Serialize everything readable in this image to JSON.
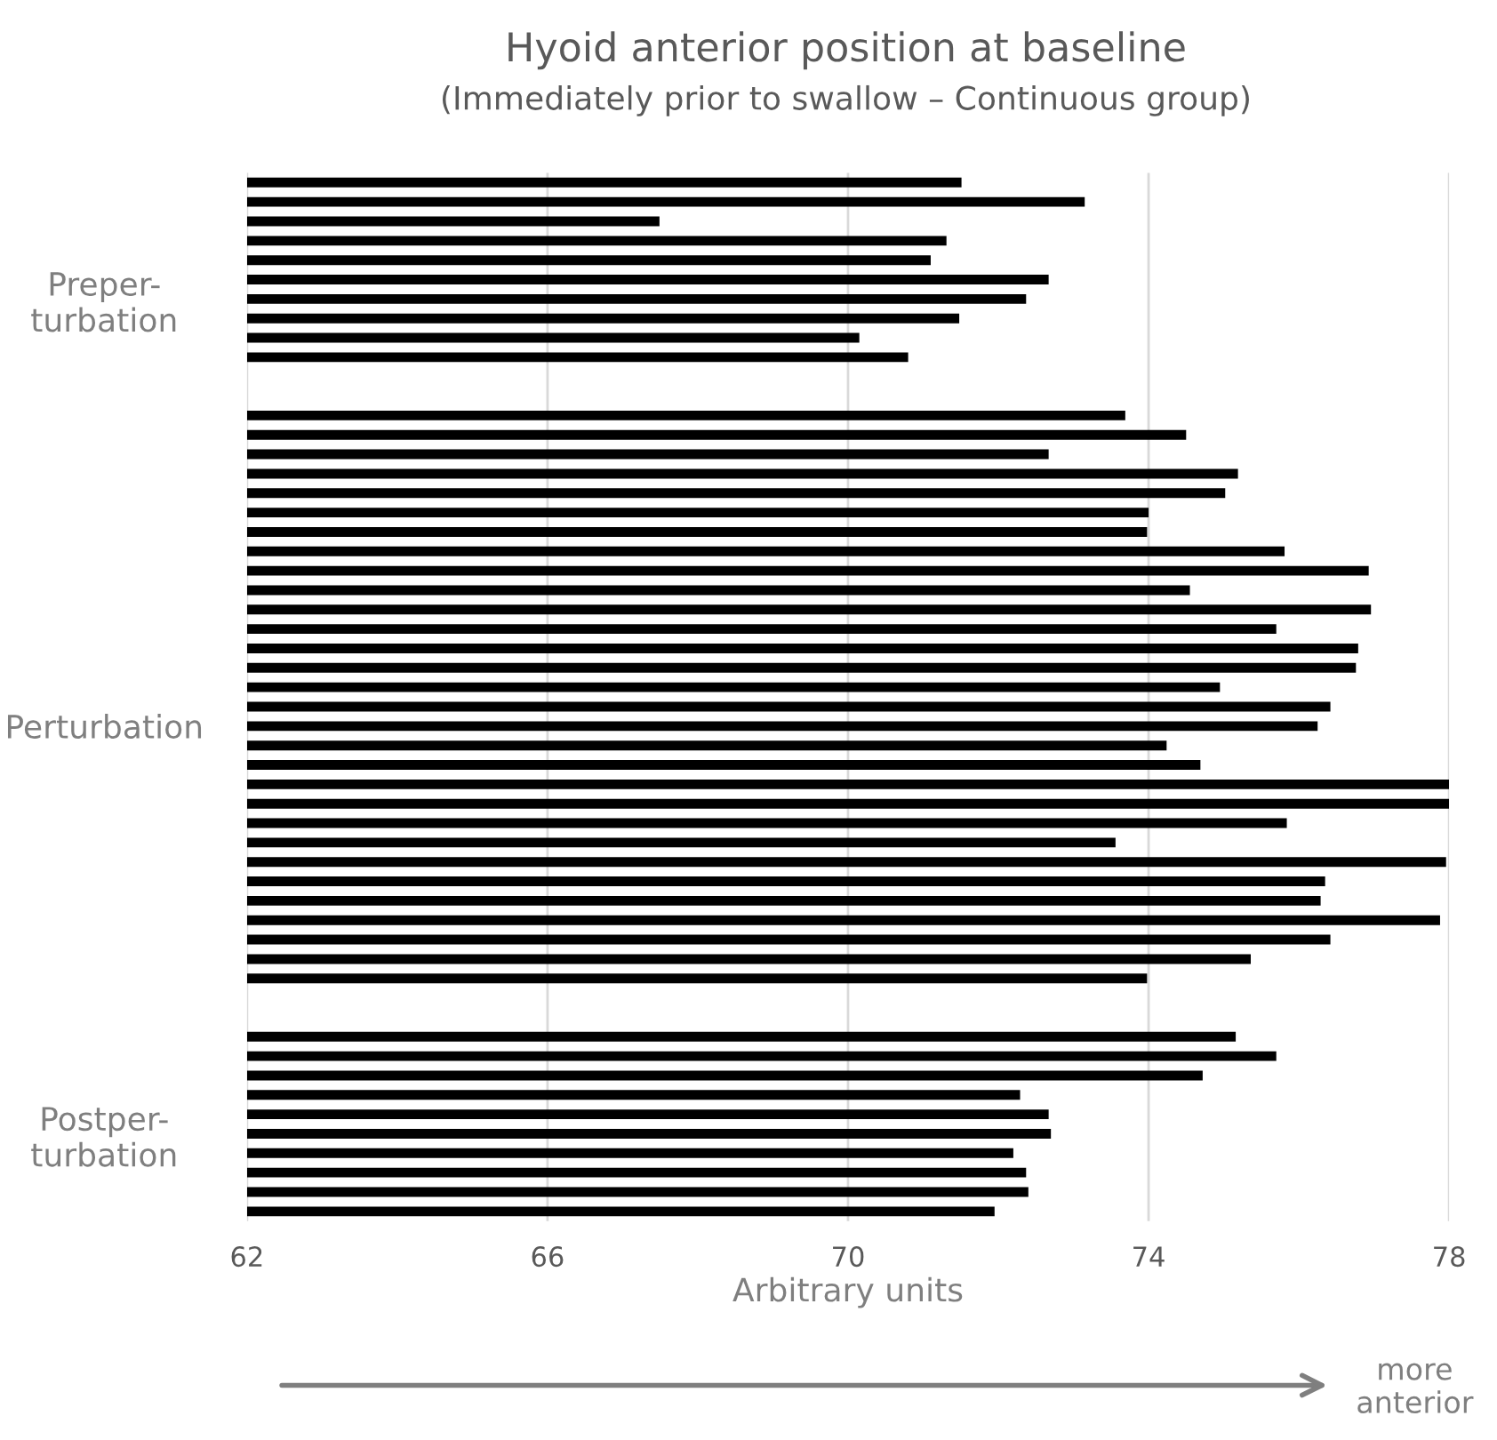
{
  "chart_data": {
    "type": "bar",
    "orientation": "horizontal",
    "title": "Hyoid anterior position at baseline",
    "subtitle": "(Immediately prior to swallow – Continuous group)",
    "xlabel": "Arbitrary units",
    "annotations": [
      "more\nanterior"
    ],
    "categories": [
      null,
      null,
      null,
      null,
      null,
      null,
      "Preper-\nturbation",
      null,
      null,
      null,
      null,
      null,
      null,
      null,
      null,
      null,
      null,
      null,
      null,
      null,
      null,
      null,
      null,
      null,
      null,
      null,
      null,
      null,
      "Perturbation",
      null,
      null,
      null,
      null,
      null,
      null,
      null,
      null,
      null,
      null,
      null,
      null,
      null,
      null,
      null,
      null,
      null,
      null,
      null,
      null,
      "Postper-\nturbation",
      null,
      null,
      null,
      null
    ],
    "values": [
      71.51,
      73.15,
      67.49,
      71.31,
      71.1,
      72.67,
      72.37,
      71.48,
      70.15,
      70.8,
      null,
      null,
      73.69,
      74.5,
      72.67,
      75.19,
      75.02,
      74.0,
      73.98,
      75.81,
      76.93,
      74.55,
      76.96,
      75.7,
      76.79,
      76.76,
      74.95,
      76.42,
      76.25,
      74.24,
      74.69,
      78.0,
      78.0,
      75.84,
      73.56,
      77.96,
      76.35,
      76.29,
      77.88,
      76.42,
      75.36,
      73.98,
      null,
      null,
      75.16,
      75.7,
      74.72,
      72.29,
      72.67,
      72.7,
      72.2,
      72.37,
      72.4,
      71.95
    ],
    "color": "#000000",
    "xlim": [
      62,
      78
    ],
    "xticks": [
      62,
      66,
      70,
      74,
      78
    ],
    "grid": "x"
  }
}
